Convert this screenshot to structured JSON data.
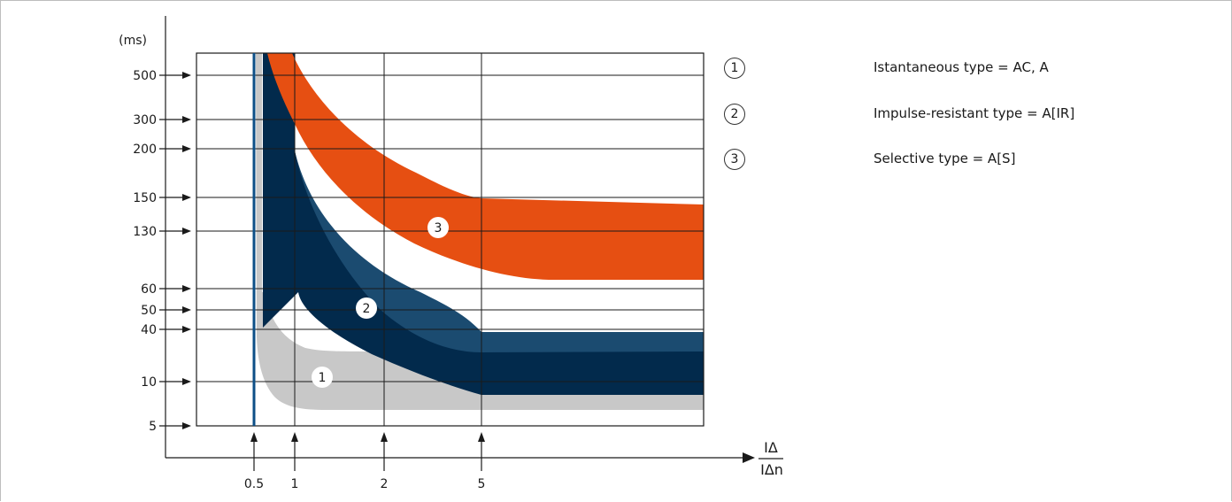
{
  "chart_data": {
    "type": "area",
    "title": "",
    "ylabel": "(ms)",
    "xlabel": "IΔ/IΔn",
    "xlabel_parts": {
      "num": "IΔ",
      "den": "IΔn"
    },
    "x_ticks": [
      "0.5",
      "1",
      "2",
      "5"
    ],
    "y_ticks": [
      "500",
      "300",
      "200",
      "150",
      "130",
      "60",
      "50",
      "40",
      "10",
      "5"
    ],
    "series": [
      {
        "id": "1",
        "color": "#c8c8c8"
      },
      {
        "id": "2",
        "color": "#1b4b70",
        "inner_color": "#022a4c"
      },
      {
        "id": "3",
        "color": "#e64f12"
      }
    ],
    "vertical_line": {
      "x": "0.5",
      "color": "#0d4f87"
    },
    "legend": [
      {
        "num": "1",
        "label": "Istantaneous type = AC, A"
      },
      {
        "num": "2",
        "label": "Impulse-resistant type = A[IR]"
      },
      {
        "num": "3",
        "label": "Selective type = A[S]"
      }
    ],
    "legend_placement": "right",
    "grid": true
  }
}
